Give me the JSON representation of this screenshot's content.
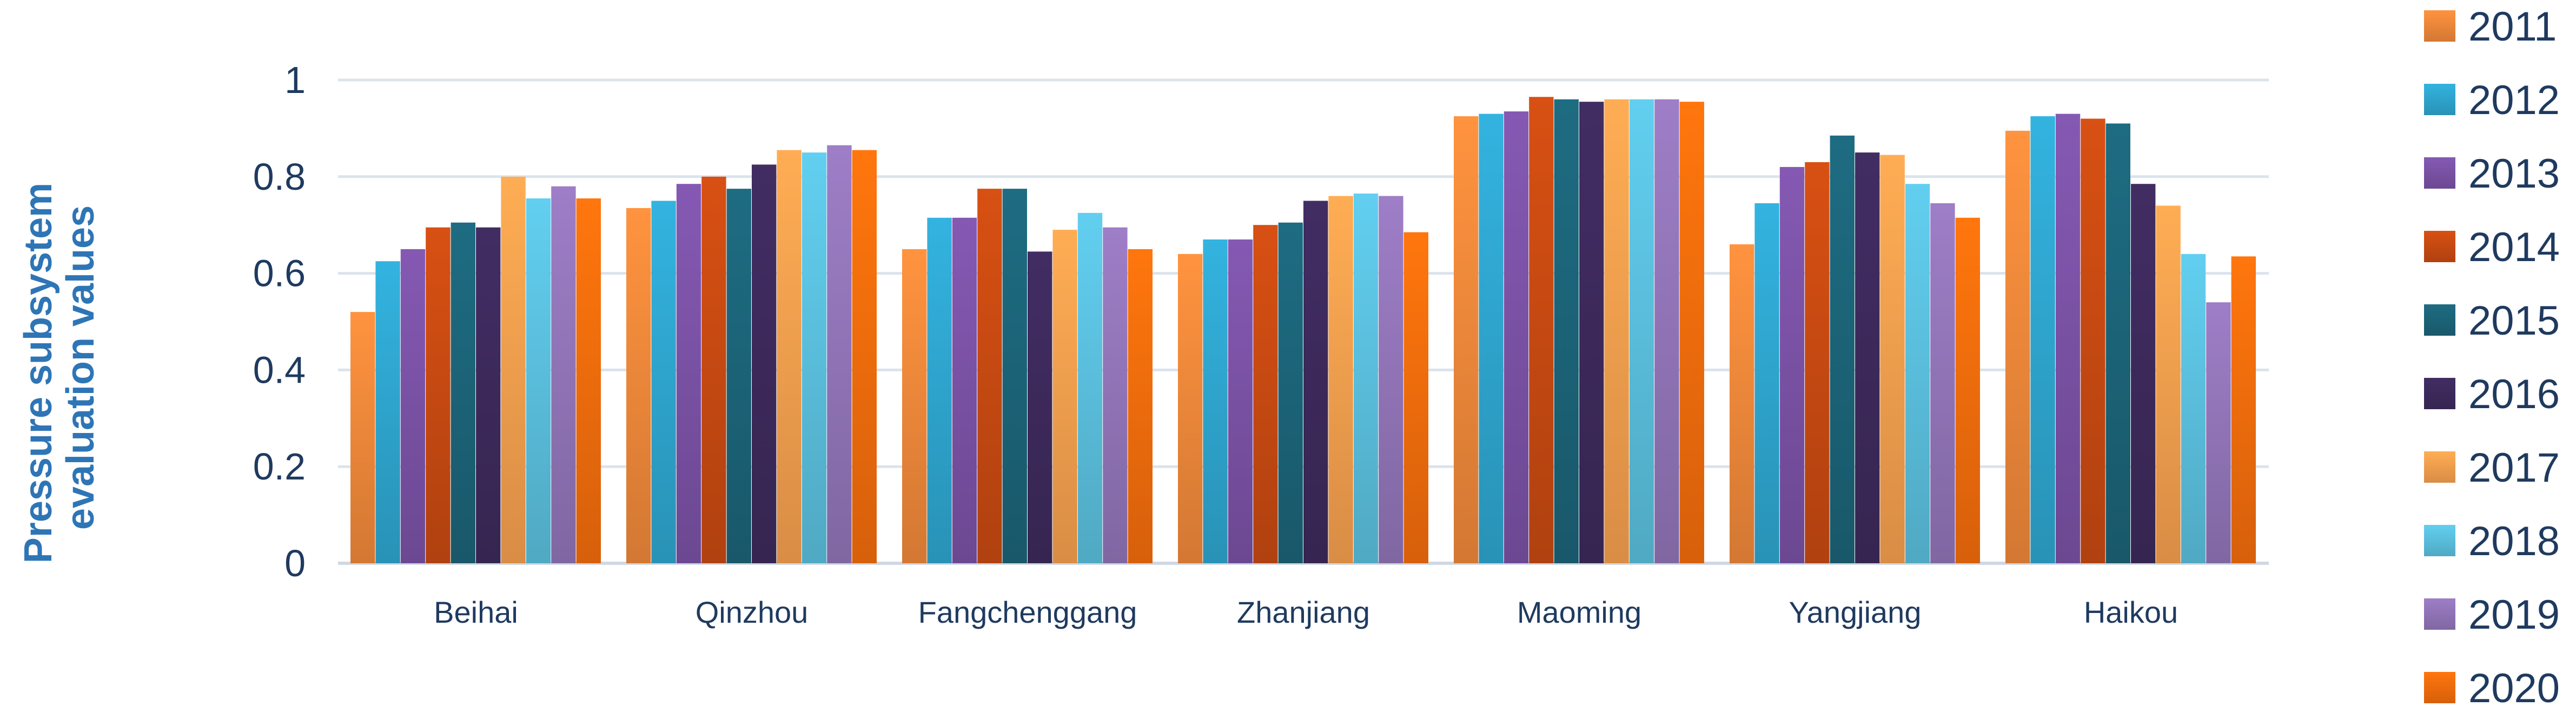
{
  "chart_data": {
    "type": "bar",
    "title": "",
    "xlabel": "",
    "ylabel": "Pressure subsystem evaluation values",
    "ylabel_lines": [
      "Pressure subsystem",
      "evaluation values"
    ],
    "ylim": [
      0,
      1
    ],
    "yticks": [
      0,
      0.2,
      0.4,
      0.6,
      0.8,
      1
    ],
    "ytick_labels": [
      "0",
      "0.2",
      "0.4",
      "0.6",
      "0.8",
      "1"
    ],
    "grid": true,
    "legend_position": "right",
    "categories": [
      "Beihai",
      "Qinzhou",
      "Fangchenggang",
      "Zhanjiang",
      "Maoming",
      "Yangjiang",
      "Haikou"
    ],
    "series": [
      {
        "name": "2011",
        "color": "#f0883a",
        "values": [
          0.52,
          0.735,
          0.65,
          0.64,
          0.925,
          0.66,
          0.895
        ]
      },
      {
        "name": "2012",
        "color": "#2fa6cf",
        "values": [
          0.625,
          0.75,
          0.715,
          0.67,
          0.93,
          0.745,
          0.925
        ]
      },
      {
        "name": "2013",
        "color": "#7b52a6",
        "values": [
          0.65,
          0.785,
          0.715,
          0.67,
          0.935,
          0.82,
          0.93
        ]
      },
      {
        "name": "2014",
        "color": "#c84a12",
        "values": [
          0.695,
          0.8,
          0.775,
          0.7,
          0.965,
          0.83,
          0.92
        ]
      },
      {
        "name": "2015",
        "color": "#1c6478",
        "values": [
          0.705,
          0.775,
          0.775,
          0.705,
          0.96,
          0.885,
          0.91
        ]
      },
      {
        "name": "2016",
        "color": "#3d2a5c",
        "values": [
          0.695,
          0.825,
          0.645,
          0.75,
          0.955,
          0.85,
          0.785
        ]
      },
      {
        "name": "2017",
        "color": "#f7a04e",
        "values": [
          0.8,
          0.855,
          0.69,
          0.76,
          0.96,
          0.845,
          0.74
        ]
      },
      {
        "name": "2018",
        "color": "#5bc0de",
        "values": [
          0.755,
          0.85,
          0.725,
          0.765,
          0.96,
          0.785,
          0.64
        ]
      },
      {
        "name": "2019",
        "color": "#9275b8",
        "values": [
          0.78,
          0.865,
          0.695,
          0.76,
          0.96,
          0.745,
          0.54
        ]
      },
      {
        "name": "2020",
        "color": "#f46d0c",
        "values": [
          0.755,
          0.855,
          0.65,
          0.685,
          0.955,
          0.715,
          0.635
        ]
      }
    ]
  }
}
